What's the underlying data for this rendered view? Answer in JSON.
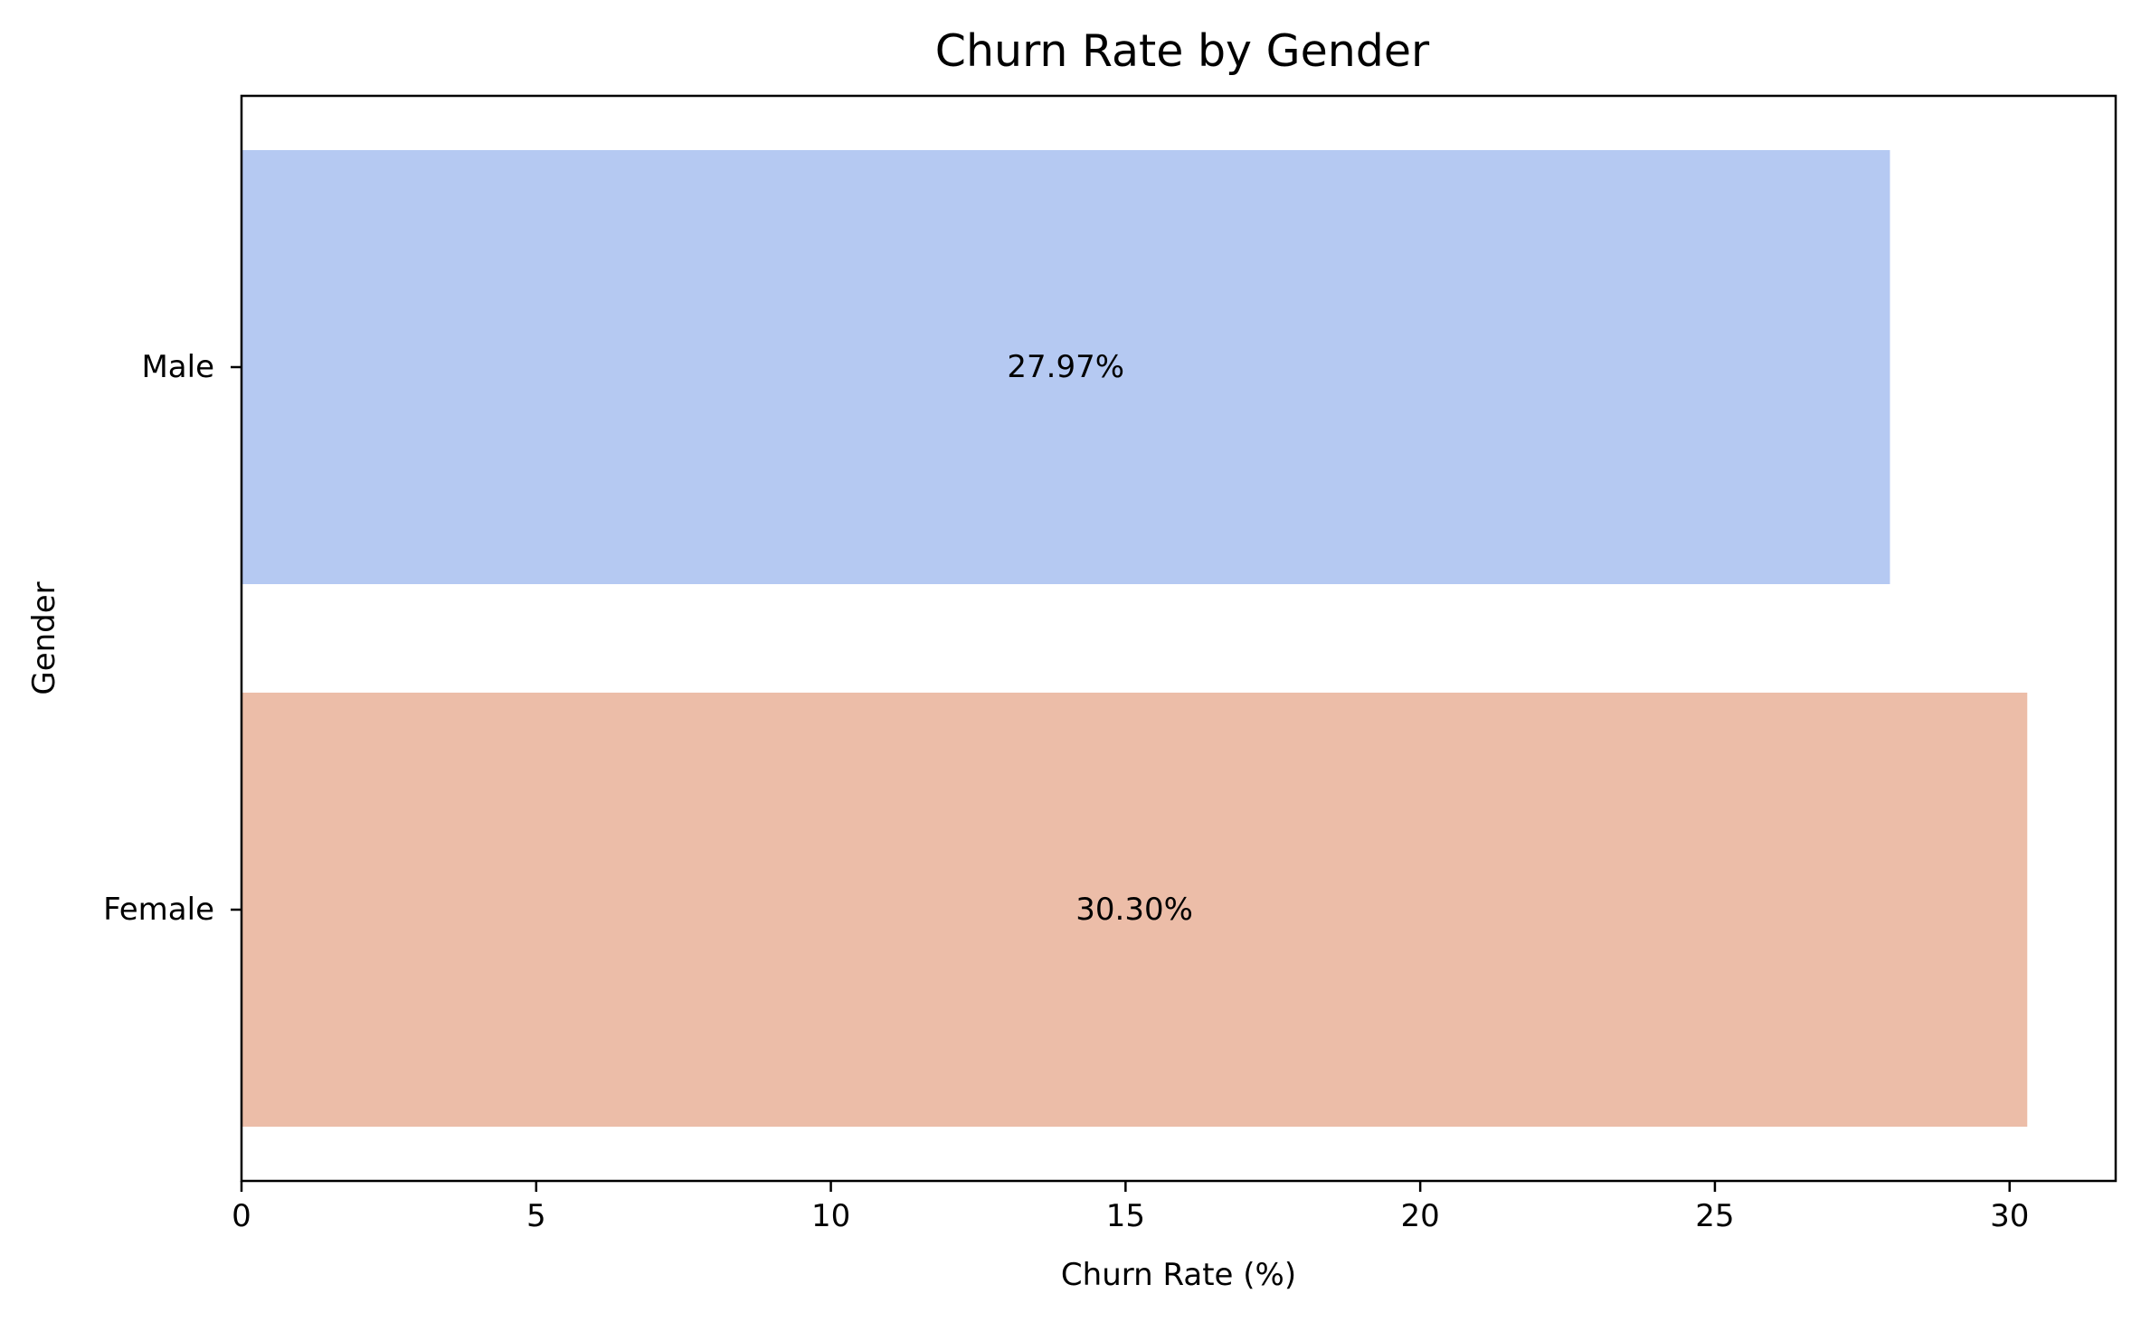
{
  "chart_data": {
    "type": "bar",
    "orientation": "horizontal",
    "title": "Churn Rate by Gender",
    "xlabel": "Churn Rate (%)",
    "ylabel": "Gender",
    "xlim": [
      0,
      31.8
    ],
    "xticks": [
      0,
      5,
      10,
      15,
      20,
      25,
      30
    ],
    "categories": [
      "Male",
      "Female"
    ],
    "values": [
      27.97,
      30.3
    ],
    "data_labels": [
      "27.97%",
      "30.30%"
    ],
    "colors": [
      "#b5c9f2",
      "#ecbda8"
    ],
    "grid": false,
    "legend": "none"
  }
}
